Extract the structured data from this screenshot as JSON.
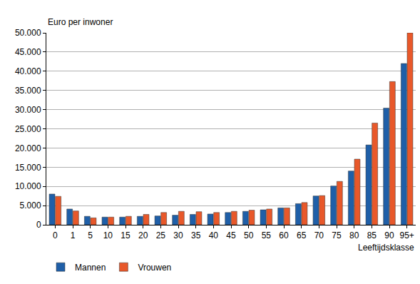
{
  "chart_data": {
    "type": "bar",
    "y_label": "Euro per inwoner",
    "x_label": "Leeftijdsklasse",
    "categories": [
      "0",
      "1",
      "5",
      "10",
      "15",
      "20",
      "25",
      "30",
      "35",
      "40",
      "45",
      "50",
      "55",
      "60",
      "65",
      "70",
      "75",
      "80",
      "85",
      "90",
      "95+"
    ],
    "series": [
      {
        "name": "Mannen",
        "color": "#1f5fa8",
        "values": [
          8000,
          4100,
          2200,
          2000,
          2000,
          2200,
          2300,
          2500,
          2700,
          2800,
          3200,
          3500,
          3900,
          4400,
          5500,
          7500,
          10100,
          14000,
          20800,
          30400,
          42000
        ]
      },
      {
        "name": "Vrouwen",
        "color": "#e8582a",
        "values": [
          7400,
          3600,
          1800,
          2000,
          2200,
          2700,
          3200,
          3500,
          3400,
          3200,
          3500,
          3800,
          4100,
          4400,
          5800,
          7600,
          11300,
          17100,
          26500,
          37300,
          50000
        ]
      }
    ],
    "ylim": [
      0,
      50000
    ],
    "yticks": [
      0,
      {
        "value": 5000,
        "label": "5.000"
      },
      {
        "value": 10000,
        "label": "10.000"
      },
      {
        "value": 15000,
        "label": "15.000"
      },
      {
        "value": 20000,
        "label": "20.000"
      },
      {
        "value": 25000,
        "label": "25.000"
      },
      {
        "value": 30000,
        "label": "30.000"
      },
      {
        "value": 35000,
        "label": "35.000"
      },
      {
        "value": 40000,
        "label": "40.000"
      },
      {
        "value": 45000,
        "label": "45.000"
      },
      {
        "value": 50000,
        "label": "50.000"
      }
    ],
    "grid": true,
    "legend": "bottom"
  }
}
